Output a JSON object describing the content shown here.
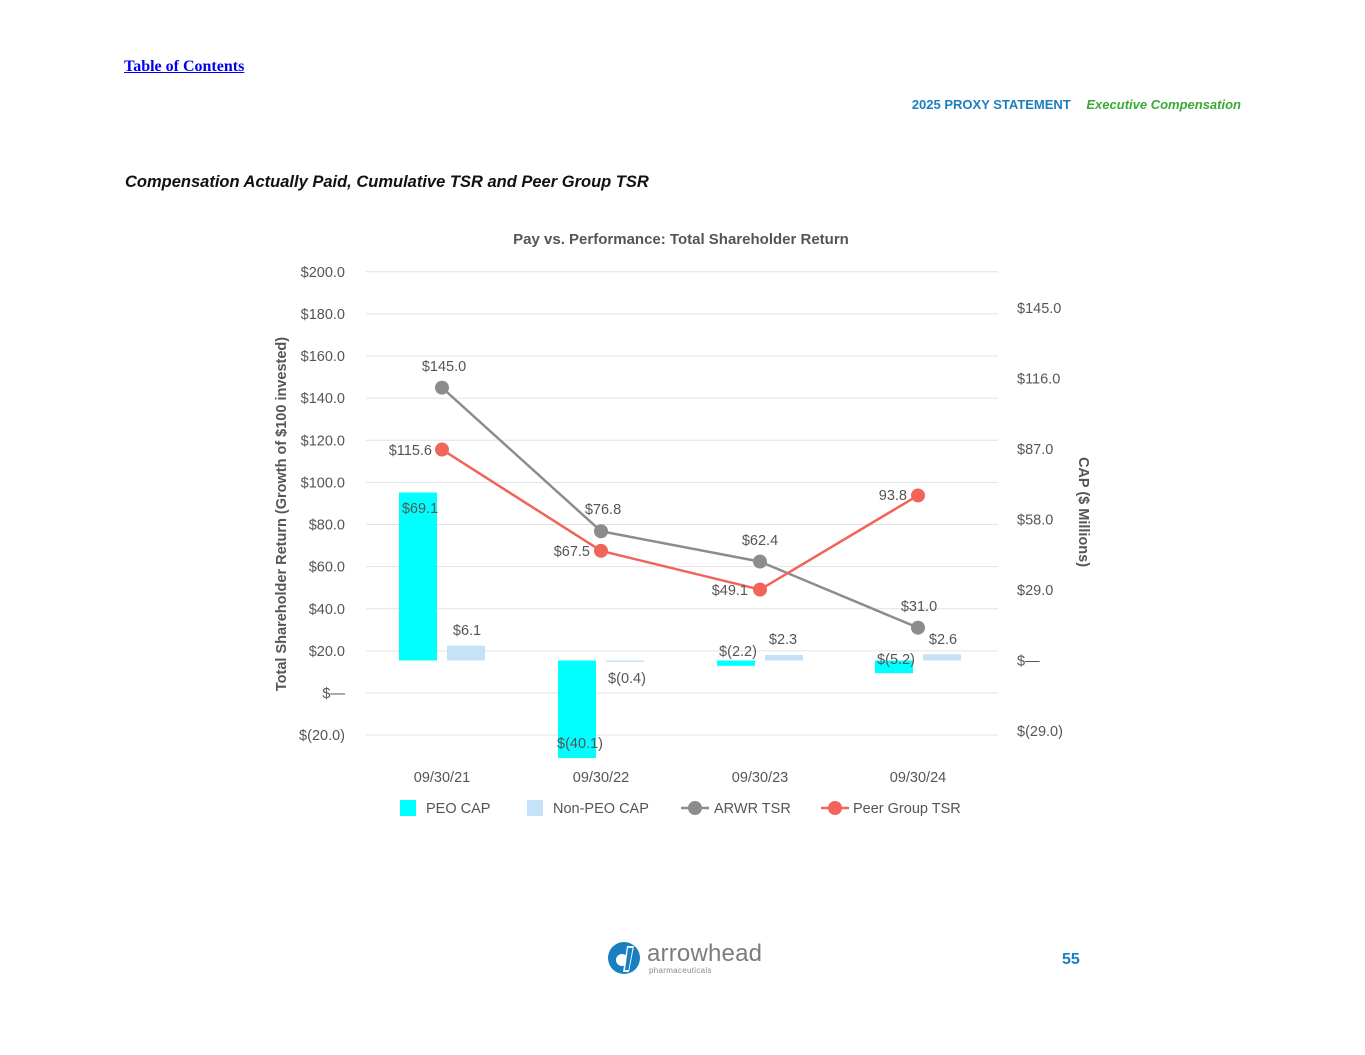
{
  "header": {
    "toc_link": "Table of Contents",
    "doc_label": "2025 PROXY STATEMENT",
    "section_label": "Executive Compensation"
  },
  "section_title": "Compensation Actually Paid, Cumulative TSR and Peer Group TSR",
  "footer": {
    "logo_name": "arrowhead",
    "logo_sub": "pharmaceuticals",
    "page_number": "55"
  },
  "colors": {
    "peo_cap": "#00ffff",
    "non_peo_cap": "#c6e2f7",
    "arwr_tsr": "#8c8c8c",
    "peer_tsr": "#f0645a",
    "axis_text": "#555555",
    "grid": "#e3e3e3",
    "link": "#0000ee",
    "brand_blue": "#1a7fc1",
    "brand_green": "#3aaa35"
  },
  "chart_data": {
    "type": "bar+line",
    "title": "Pay vs. Performance: Total Shareholder Return",
    "categories": [
      "09/30/21",
      "09/30/22",
      "09/30/23",
      "09/30/24"
    ],
    "y_left": {
      "label": "Total Shareholder Return (Growth of $100 invested)",
      "min": -20,
      "max": 200,
      "ticks": [
        200,
        180,
        160,
        140,
        120,
        100,
        80,
        60,
        40,
        20,
        0,
        -20
      ],
      "tick_labels": [
        "$200.0",
        "$180.0",
        "$160.0",
        "$140.0",
        "$120.0",
        "$100.0",
        "$80.0",
        "$60.0",
        "$40.0",
        "$20.0",
        "$—",
        "$(20.0)"
      ]
    },
    "y_right": {
      "label": "CAP ($ Millions)",
      "min": -35,
      "max": 152,
      "ticks": [
        145,
        116,
        87,
        58,
        29,
        0,
        -29
      ],
      "tick_labels": [
        "$145.0",
        "$116.0",
        "$87.0",
        "$58.0",
        "$29.0",
        "$—",
        "$(29.0)"
      ]
    },
    "bar_series": [
      {
        "name": "PEO CAP",
        "axis": "right",
        "values": [
          69.1,
          -40.1,
          -2.2,
          -5.2
        ],
        "labels": [
          "$69.1",
          "$(40.1)",
          "$(2.2)",
          "$(5.2)"
        ]
      },
      {
        "name": "Non-PEO CAP",
        "axis": "right",
        "values": [
          6.1,
          -0.4,
          2.3,
          2.6
        ],
        "labels": [
          "$6.1",
          "$(0.4)",
          "$2.3",
          "$2.6"
        ]
      }
    ],
    "line_series": [
      {
        "name": "ARWR TSR",
        "axis": "left",
        "values": [
          145.0,
          76.8,
          62.4,
          31.0
        ],
        "labels": [
          "$145.0",
          "$76.8",
          "$62.4",
          "$31.0"
        ]
      },
      {
        "name": "Peer Group TSR",
        "axis": "left",
        "values": [
          115.6,
          67.5,
          49.1,
          93.8
        ],
        "labels": [
          "$115.6",
          "$67.5",
          "$49.1",
          "93.8"
        ]
      }
    ],
    "legend": [
      "PEO CAP",
      "Non-PEO CAP",
      "ARWR TSR",
      "Peer Group TSR"
    ],
    "legend_position": "bottom",
    "grid": true
  }
}
